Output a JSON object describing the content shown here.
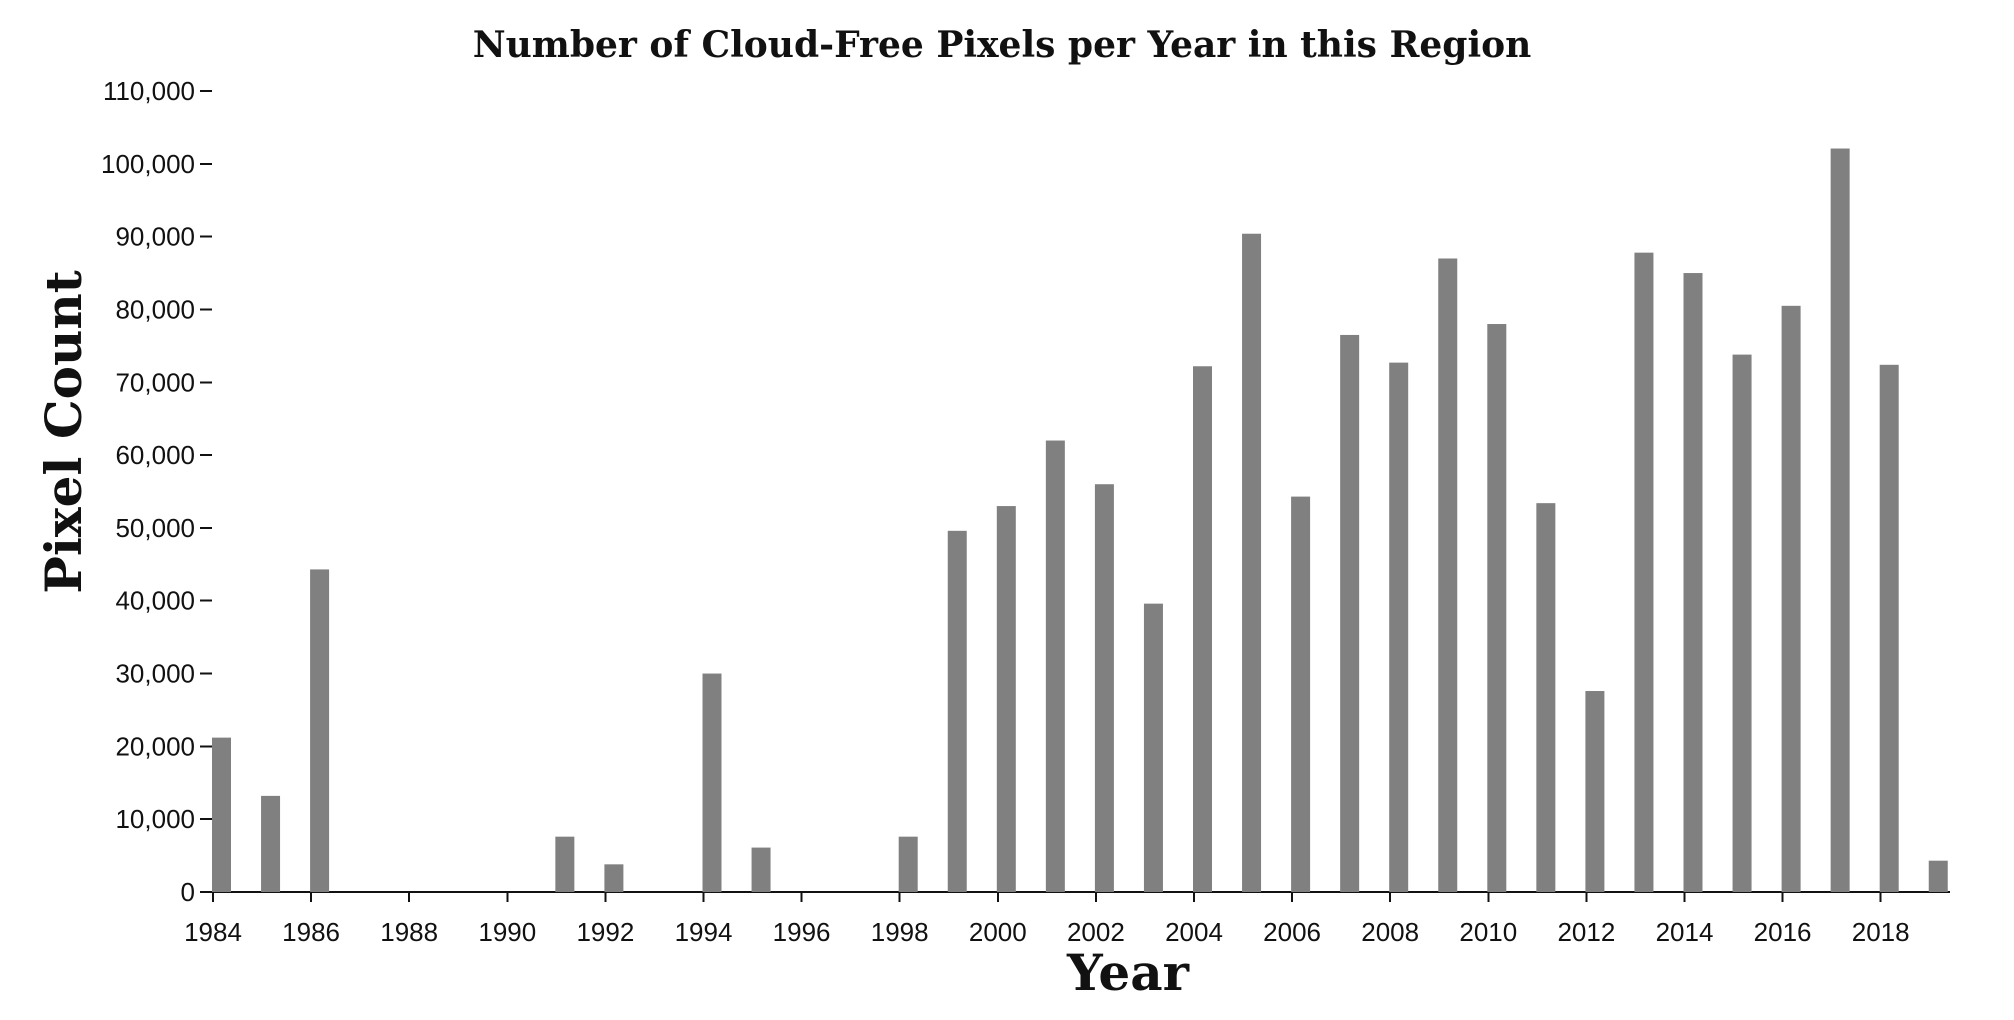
{
  "colors": {
    "bar": "#808080",
    "axis": "#111111",
    "background": "#ffffff"
  },
  "chart_data": {
    "type": "bar",
    "title": "Number of Cloud-Free Pixels per Year in this Region",
    "xlabel": "Year",
    "ylabel": "Pixel Count",
    "ylim": [
      0,
      110000
    ],
    "y_ticks": [
      "0",
      "10,000",
      "20,000",
      "30,000",
      "40,000",
      "50,000",
      "60,000",
      "70,000",
      "80,000",
      "90,000",
      "100,000",
      "110,000"
    ],
    "x_ticks": [
      "1984",
      "1986",
      "1988",
      "1990",
      "1992",
      "1994",
      "1996",
      "1998",
      "2000",
      "2002",
      "2004",
      "2006",
      "2008",
      "2010",
      "2012",
      "2014",
      "2016",
      "2018"
    ],
    "grid": false,
    "categories": [
      1984,
      1985,
      1986,
      1987,
      1988,
      1989,
      1990,
      1991,
      1992,
      1993,
      1994,
      1995,
      1996,
      1997,
      1998,
      1999,
      2000,
      2001,
      2002,
      2003,
      2004,
      2005,
      2006,
      2007,
      2008,
      2009,
      2010,
      2011,
      2012,
      2013,
      2014,
      2015,
      2016,
      2017,
      2018,
      2019
    ],
    "values": [
      21200,
      13200,
      44300,
      0,
      0,
      0,
      0,
      7600,
      3800,
      0,
      30000,
      6100,
      0,
      0,
      7600,
      49600,
      53000,
      62000,
      56000,
      39600,
      72200,
      90400,
      54300,
      76500,
      72700,
      87000,
      78000,
      53400,
      27600,
      87800,
      85000,
      73800,
      80500,
      102100,
      72400,
      4300
    ]
  }
}
